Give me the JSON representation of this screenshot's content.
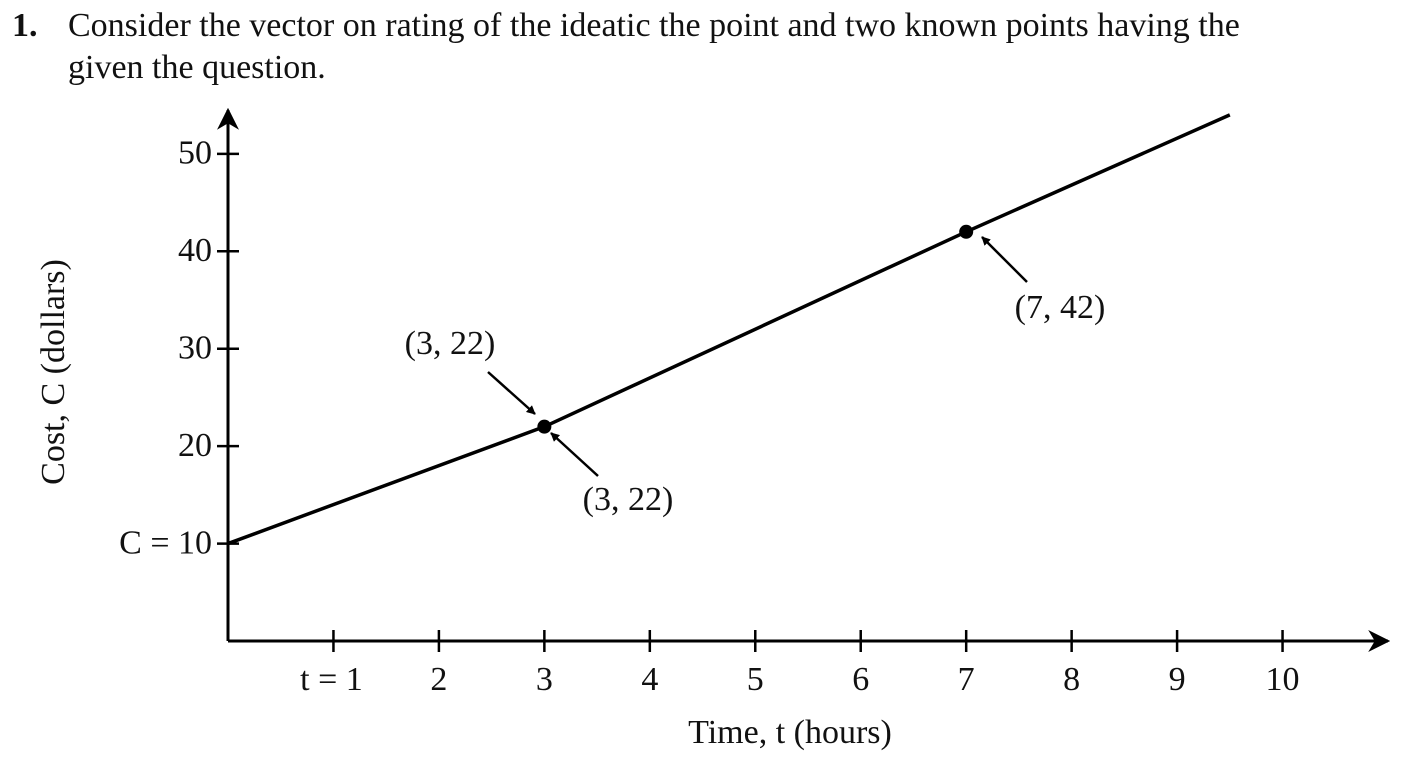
{
  "question": {
    "number": "1.",
    "text_lines": [
      "Consider the vector on rating of the ideatic the point and two known points having the",
      "given the question."
    ]
  },
  "chart_data": {
    "type": "line",
    "x_label": "Time, t (hours)",
    "y_label": "Cost, C (dollars)",
    "xlim": [
      0,
      11
    ],
    "ylim": [
      0,
      54.5
    ],
    "xticks": [
      {
        "value": 1,
        "label": "t = 1"
      },
      2,
      3,
      4,
      5,
      6,
      7,
      8,
      9,
      10
    ],
    "yticks": [
      {
        "value": 10,
        "label": "C = 10"
      },
      20,
      30,
      40,
      50
    ],
    "series": [
      {
        "x": [
          0,
          3,
          7,
          9.5
        ],
        "values": [
          10,
          22,
          42,
          54
        ],
        "color": "#000000"
      }
    ],
    "points": {
      "x": [
        3,
        7
      ],
      "values": [
        22,
        42
      ],
      "color": "#000000"
    },
    "annotations": [
      "(3, 22)",
      "(3, 22)",
      "(7, 42)"
    ]
  }
}
